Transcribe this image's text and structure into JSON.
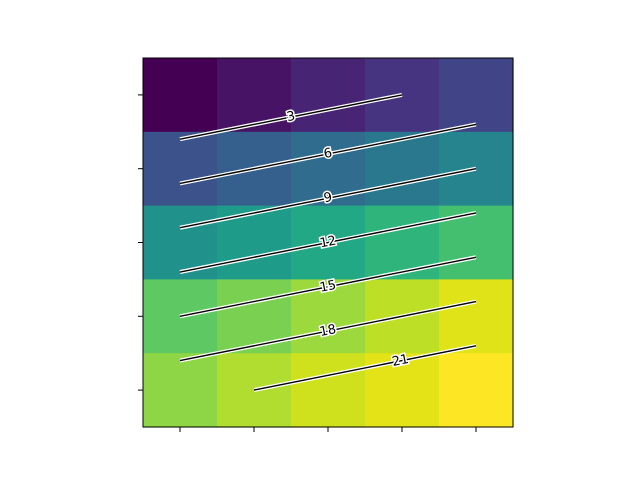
{
  "chart_data": {
    "type": "heatmap",
    "title": "",
    "xlabel": "",
    "ylabel": "",
    "x": [
      0,
      1,
      2,
      3,
      4
    ],
    "y": [
      0,
      1,
      2,
      3,
      4
    ],
    "xlim": [
      -0.5,
      4.5
    ],
    "ylim": [
      -0.5,
      4.5
    ],
    "y_inverted": true,
    "tick_labels_visible": false,
    "grid": false,
    "legend": "none",
    "colormap": "viridis",
    "values": [
      [
        0,
        1,
        2,
        3,
        4
      ],
      [
        5,
        6,
        7,
        8,
        9
      ],
      [
        10,
        11,
        12,
        13,
        14
      ],
      [
        15,
        16,
        17,
        18,
        19
      ],
      [
        20,
        21,
        22,
        23,
        24
      ]
    ],
    "cell_colors": [
      [
        "#440154",
        "#471365",
        "#482475",
        "#463480",
        "#414487"
      ],
      [
        "#3b528b",
        "#355f8d",
        "#2f6c8e",
        "#2a788e",
        "#25848e"
      ],
      [
        "#21918c",
        "#1e9c89",
        "#22a884",
        "#2fb47c",
        "#44bf70"
      ],
      [
        "#5ec962",
        "#7ad151",
        "#9bd93c",
        "#bddf26",
        "#dfe318"
      ],
      [
        "#8ed645",
        "#b0dd2f",
        "#cfe11c",
        "#e4e318",
        "#fde725"
      ]
    ],
    "contour_levels": [
      3,
      6,
      9,
      12,
      15,
      18,
      21
    ],
    "contour_label_color": "#000000",
    "contour_halo_color": "#ffffff",
    "contour_line_color": "#000000"
  }
}
